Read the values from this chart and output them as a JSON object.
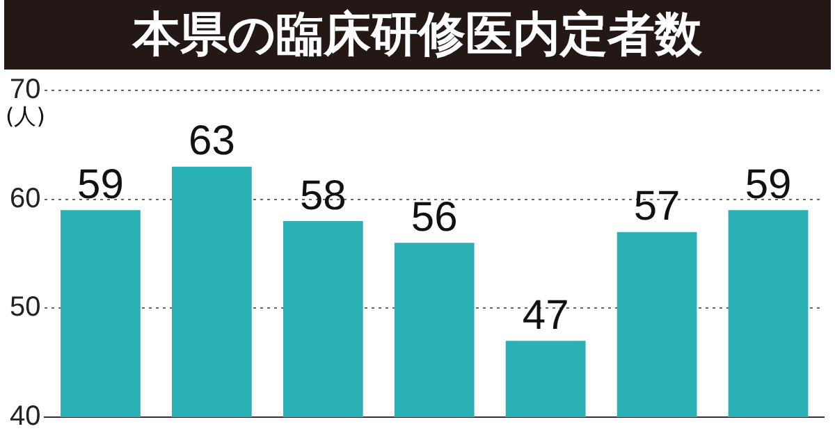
{
  "chart_data": {
    "type": "bar",
    "title": "本県の臨床研修医内定者数",
    "ylabel": "(人)",
    "categories": [
      null,
      null,
      null,
      null,
      null,
      null,
      null
    ],
    "values": [
      59,
      63,
      58,
      56,
      47,
      57,
      59
    ],
    "color": "#2ab1b5",
    "ylim": [
      40,
      70
    ],
    "yticks": [
      40,
      50,
      60,
      70
    ],
    "grid": "y",
    "data_labels": true
  }
}
